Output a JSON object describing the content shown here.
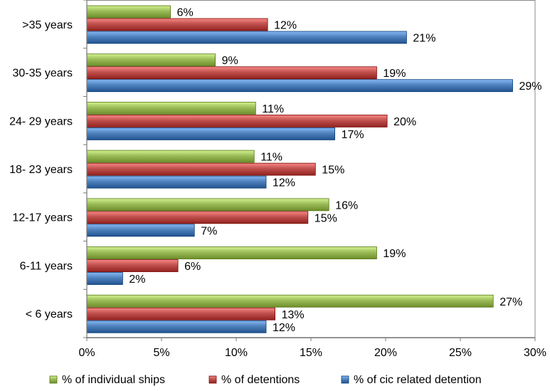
{
  "chart_data": {
    "type": "bar",
    "orientation": "horizontal",
    "categories": [
      ">35 years",
      "30-35 years",
      "24- 29 years",
      "18- 23 years",
      "12-17 years",
      "6-11 years",
      "< 6 years"
    ],
    "series": [
      {
        "name": "% of individual ships",
        "color": "#9BBB59",
        "values": [
          6,
          9,
          11,
          11,
          16,
          19,
          27
        ],
        "labels": [
          "6%",
          "9%",
          "11%",
          "11%",
          "16%",
          "19%",
          "27%"
        ]
      },
      {
        "name": "% of detentions",
        "color": "#C0504D",
        "values": [
          12,
          19,
          20,
          15,
          15,
          6,
          13
        ],
        "labels": [
          "12%",
          "19%",
          "20%",
          "15%",
          "15%",
          "6%",
          "13%"
        ]
      },
      {
        "name": "% of cic related detention",
        "color": "#4F81BD",
        "values": [
          21,
          29,
          17,
          12,
          7,
          2,
          12
        ],
        "labels": [
          "21%",
          "29%",
          "17%",
          "12%",
          "7%",
          "2%",
          "12%"
        ]
      }
    ],
    "bar_lengths": [
      [
        5.6,
        12.1,
        21.4
      ],
      [
        8.6,
        19.4,
        28.5
      ],
      [
        11.3,
        20.1,
        16.6
      ],
      [
        11.2,
        15.3,
        12.0
      ],
      [
        16.2,
        14.8,
        7.2
      ],
      [
        19.4,
        6.1,
        2.4
      ],
      [
        27.2,
        12.6,
        12.0
      ]
    ],
    "x_ticks": [
      0,
      5,
      10,
      15,
      20,
      25,
      30
    ],
    "x_tick_labels": [
      "0%",
      "5%",
      "10%",
      "15%",
      "20%",
      "25%",
      "30%"
    ],
    "xlim": [
      0,
      30
    ],
    "grid": false,
    "legend": "bottom",
    "title": "",
    "xlabel": "",
    "ylabel": ""
  }
}
